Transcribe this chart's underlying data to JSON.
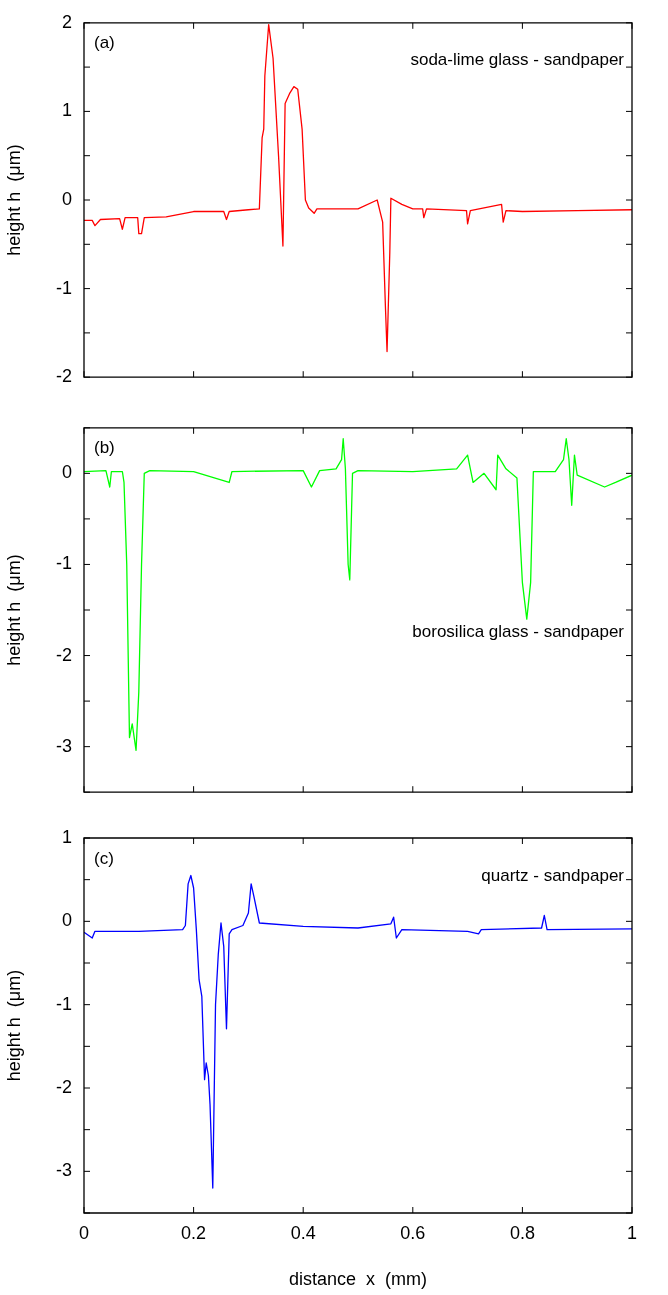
{
  "chart_data": [
    {
      "type": "line",
      "ylabel": "height h  (μm)",
      "annotations": [
        "(a)",
        "soda-lime glass - sandpaper"
      ],
      "tick_labels": "y",
      "xlim": [
        0,
        1
      ],
      "xticks": [
        0,
        0.2,
        0.4,
        0.6,
        0.8,
        1
      ],
      "ylim": [
        -2,
        2
      ],
      "yticks": [
        -2,
        {
          "value": -1.5,
          "label": null
        },
        -1,
        {
          "value": -0.5,
          "label": null
        },
        0,
        {
          "value": 0.5,
          "label": null
        },
        1,
        {
          "value": 1.5,
          "label": null
        },
        2
      ],
      "grid": false,
      "legend": false,
      "series": [
        {
          "color": "#ff0000",
          "x": [
            0,
            0.015,
            0.02,
            0.03,
            0.065,
            0.07,
            0.075,
            0.098,
            0.1,
            0.105,
            0.11,
            0.15,
            0.2,
            0.255,
            0.26,
            0.265,
            0.3,
            0.32,
            0.325,
            0.328,
            0.33,
            0.337,
            0.345,
            0.355,
            0.363,
            0.367,
            0.375,
            0.383,
            0.39,
            0.398,
            0.404,
            0.41,
            0.42,
            0.425,
            0.5,
            0.535,
            0.545,
            0.55,
            0.553,
            0.558,
            0.56,
            0.58,
            0.6,
            0.618,
            0.62,
            0.625,
            0.698,
            0.7,
            0.705,
            0.762,
            0.765,
            0.77,
            0.8,
            0.9,
            1
          ],
          "values": [
            -0.23,
            -0.23,
            -0.29,
            -0.22,
            -0.21,
            -0.33,
            -0.2,
            -0.2,
            -0.38,
            -0.38,
            -0.2,
            -0.19,
            -0.13,
            -0.13,
            -0.22,
            -0.13,
            -0.11,
            -0.1,
            0.7,
            0.8,
            1.4,
            1.98,
            1.6,
            0.5,
            -0.52,
            1.09,
            1.2,
            1.28,
            1.25,
            0.8,
            0,
            -0.09,
            -0.15,
            -0.1,
            -0.1,
            0,
            -0.25,
            -1.2,
            -1.71,
            -0.6,
            0.02,
            -0.05,
            -0.1,
            -0.1,
            -0.2,
            -0.1,
            -0.12,
            -0.27,
            -0.12,
            -0.05,
            -0.25,
            -0.12,
            -0.13,
            -0.12,
            -0.11
          ]
        }
      ]
    },
    {
      "type": "line",
      "ylabel": "height h  (μm)",
      "annotations": [
        "(b)",
        "borosilica glass - sandpaper"
      ],
      "tick_labels": "y",
      "xlim": [
        0,
        1
      ],
      "xticks": [
        0,
        0.2,
        0.4,
        0.6,
        0.8,
        1
      ],
      "ylim": [
        -3.5,
        0.5
      ],
      "yticks": [
        {
          "value": -3.5,
          "label": null
        },
        -3,
        {
          "value": -2.5,
          "label": null
        },
        -2,
        {
          "value": -1.5,
          "label": null
        },
        -1,
        {
          "value": -0.5,
          "label": null
        },
        0,
        {
          "value": 0.5,
          "label": null
        }
      ],
      "grid": false,
      "legend": false,
      "series": [
        {
          "color": "#00ff00",
          "x": [
            0,
            0.04,
            0.047,
            0.05,
            0.07,
            0.073,
            0.078,
            0.083,
            0.088,
            0.095,
            0.1,
            0.105,
            0.11,
            0.12,
            0.2,
            0.265,
            0.27,
            0.4,
            0.415,
            0.43,
            0.46,
            0.47,
            0.473,
            0.477,
            0.482,
            0.485,
            0.49,
            0.5,
            0.6,
            0.68,
            0.7,
            0.705,
            0.71,
            0.73,
            0.752,
            0.755,
            0.77,
            0.79,
            0.8,
            0.808,
            0.815,
            0.82,
            0.86,
            0.875,
            0.88,
            0.885,
            0.89,
            0.895,
            0.9,
            0.95,
            0.97,
            1
          ],
          "values": [
            0.02,
            0.03,
            -0.15,
            0.02,
            0.02,
            -0.1,
            -1.0,
            -2.9,
            -2.75,
            -3.04,
            -2.4,
            -1.0,
            0,
            0.03,
            0.02,
            -0.1,
            0.02,
            0.03,
            -0.15,
            0.03,
            0.05,
            0.15,
            0.38,
            0.05,
            -1.0,
            -1.17,
            0,
            0.03,
            0.02,
            0.05,
            0.2,
            0.05,
            -0.1,
            0,
            -0.18,
            0.2,
            0.05,
            -0.05,
            -1.2,
            -1.6,
            -1.2,
            0.02,
            0.02,
            0.15,
            0.38,
            0.15,
            -0.35,
            0.2,
            -0.02,
            -0.15,
            -0.1,
            -0.02
          ]
        }
      ]
    },
    {
      "type": "line",
      "xlabel": "distance  x  (mm)",
      "ylabel": "height h  (μm)",
      "annotations": [
        "(c)",
        "quartz - sandpaper"
      ],
      "xlim": [
        0,
        1
      ],
      "xticks": [
        0,
        0.2,
        0.4,
        0.6,
        0.8,
        1
      ],
      "ylim": [
        -3.5,
        1
      ],
      "yticks": [
        {
          "value": -3.5,
          "label": null
        },
        -3,
        {
          "value": -2.5,
          "label": null
        },
        -2,
        {
          "value": -1.5,
          "label": null
        },
        -1,
        {
          "value": -0.5,
          "label": null
        },
        0,
        {
          "value": 0.5,
          "label": null
        },
        1
      ],
      "grid": false,
      "legend": false,
      "series": [
        {
          "color": "#0000ff",
          "x": [
            0,
            0.015,
            0.02,
            0.1,
            0.18,
            0.185,
            0.19,
            0.195,
            0.2,
            0.205,
            0.21,
            0.215,
            0.22,
            0.223,
            0.227,
            0.23,
            0.235,
            0.24,
            0.245,
            0.25,
            0.255,
            0.26,
            0.265,
            0.27,
            0.29,
            0.3,
            0.305,
            0.31,
            0.32,
            0.4,
            0.5,
            0.56,
            0.565,
            0.57,
            0.58,
            0.7,
            0.72,
            0.725,
            0.835,
            0.84,
            0.845,
            1
          ],
          "values": [
            -0.13,
            -0.2,
            -0.12,
            -0.12,
            -0.1,
            -0.05,
            0.45,
            0.55,
            0.4,
            -0.1,
            -0.7,
            -0.9,
            -1.9,
            -1.7,
            -1.85,
            -2.2,
            -3.2,
            -1.0,
            -0.4,
            -0.02,
            -0.3,
            -1.29,
            -0.15,
            -0.1,
            -0.05,
            0.1,
            0.45,
            0.3,
            -0.02,
            -0.06,
            -0.08,
            -0.03,
            0.05,
            -0.2,
            -0.1,
            -0.12,
            -0.15,
            -0.1,
            -0.08,
            0.07,
            -0.1,
            -0.09
          ]
        }
      ]
    }
  ]
}
